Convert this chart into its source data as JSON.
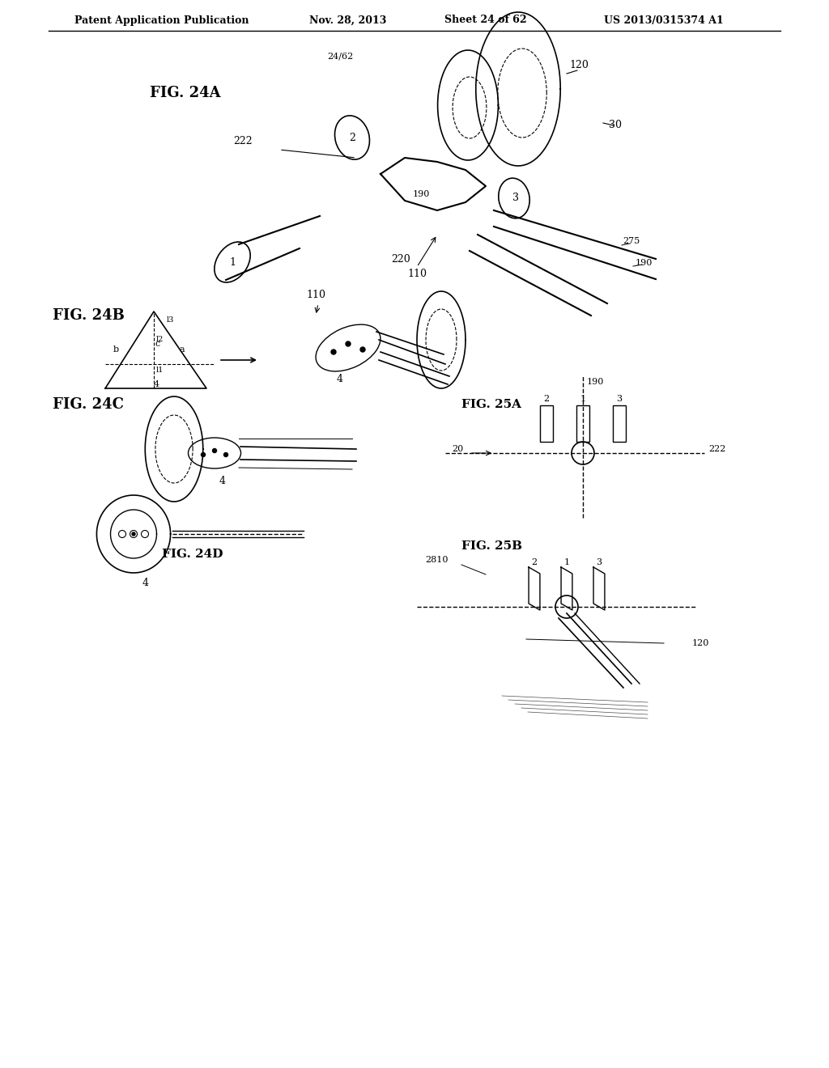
{
  "bg_color": "#ffffff",
  "header_text": "Patent Application Publication",
  "header_date": "Nov. 28, 2013",
  "header_sheet": "Sheet 24 of 62",
  "header_patent": "US 2013/0315374 A1",
  "page_label": "24/62",
  "fig24a_label": "FIG. 24A",
  "fig24b_label": "FIG. 24B",
  "fig24c_label": "FIG. 24C",
  "fig24d_label": "FIG. 24D",
  "fig25a_label": "FIG. 25A",
  "fig25b_label": "FIG. 25B",
  "line_color": "#000000",
  "text_color": "#000000"
}
